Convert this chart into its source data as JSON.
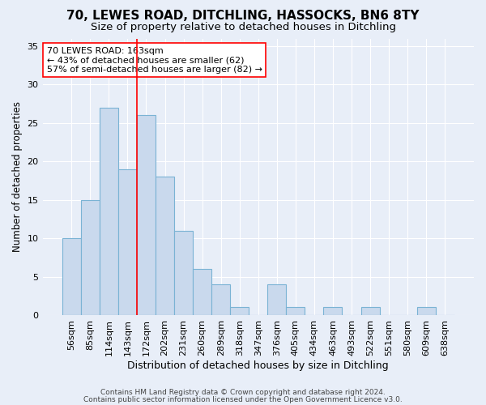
{
  "title": "70, LEWES ROAD, DITCHLING, HASSOCKS, BN6 8TY",
  "subtitle": "Size of property relative to detached houses in Ditchling",
  "xlabel": "Distribution of detached houses by size in Ditchling",
  "ylabel": "Number of detached properties",
  "categories": [
    "56sqm",
    "85sqm",
    "114sqm",
    "143sqm",
    "172sqm",
    "202sqm",
    "231sqm",
    "260sqm",
    "289sqm",
    "318sqm",
    "347sqm",
    "376sqm",
    "405sqm",
    "434sqm",
    "463sqm",
    "493sqm",
    "522sqm",
    "551sqm",
    "580sqm",
    "609sqm",
    "638sqm"
  ],
  "values": [
    10,
    15,
    27,
    19,
    26,
    18,
    11,
    6,
    4,
    1,
    0,
    4,
    1,
    0,
    1,
    0,
    1,
    0,
    0,
    1,
    0
  ],
  "bar_color": "#c9d9ed",
  "bar_edge_color": "#7ab3d4",
  "bar_linewidth": 0.8,
  "vline_x": 3.5,
  "vline_color": "red",
  "vline_linewidth": 1.2,
  "ylim": [
    0,
    36
  ],
  "yticks": [
    0,
    5,
    10,
    15,
    20,
    25,
    30,
    35
  ],
  "annotation_text": "70 LEWES ROAD: 163sqm\n← 43% of detached houses are smaller (62)\n57% of semi-detached houses are larger (82) →",
  "annotation_box_color": "white",
  "annotation_box_edge_color": "red",
  "footer_line1": "Contains HM Land Registry data © Crown copyright and database right 2024.",
  "footer_line2": "Contains public sector information licensed under the Open Government Licence v3.0.",
  "background_color": "#e8eef8",
  "grid_color": "#ffffff",
  "title_fontsize": 11,
  "subtitle_fontsize": 9.5,
  "xlabel_fontsize": 9,
  "ylabel_fontsize": 8.5,
  "tick_fontsize": 8,
  "annotation_fontsize": 8,
  "footer_fontsize": 6.5
}
